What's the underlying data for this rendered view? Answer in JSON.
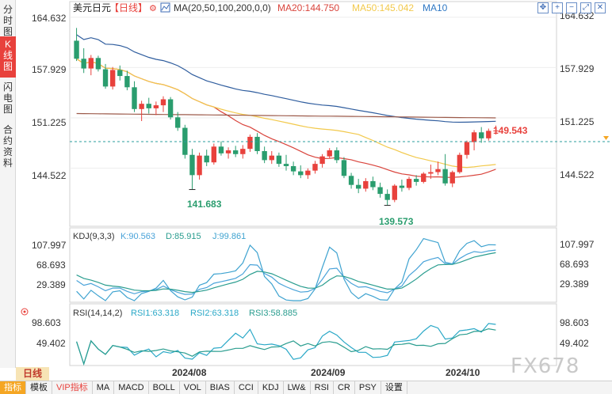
{
  "left_tabs": [
    {
      "label": "分时图",
      "active": false
    },
    {
      "label": "K线图",
      "active": true
    },
    {
      "label": "闪电图",
      "active": false
    },
    {
      "label": "合约资料",
      "active": false
    }
  ],
  "header": {
    "symbol": "美元日元",
    "period_tag": "【日线】",
    "ma_label": "MA(20,50,100,200,0,0)",
    "ma20_label": "MA20:144.750",
    "ma50_label": "MA50:145.042",
    "ma10_label": "MA10"
  },
  "toolbar": {
    "icons": [
      "move-icon",
      "zoom-in-icon",
      "zoom-out-icon",
      "expand-icon",
      "close-icon"
    ],
    "glyphs": [
      "✥",
      "+",
      "−",
      "⤢",
      "✕"
    ]
  },
  "price_axis": {
    "ticks": [
      "164.632",
      "157.929",
      "151.225",
      "144.522"
    ]
  },
  "annotations": {
    "high": "141.683",
    "low": "139.573",
    "current": "149.543"
  },
  "kdj": {
    "title": "KDJ(9,3,3)",
    "k": "K:90.563",
    "d": "D:85.915",
    "j": "J:99.861",
    "ticks": [
      "107.997",
      "68.693",
      "29.389"
    ]
  },
  "rsi": {
    "title": "RSI(14,14,2)",
    "rsi1": "RSI1:63.318",
    "rsi2": "RSI2:63.318",
    "rsi3": "RSI3:58.885",
    "ticks": [
      "98.603",
      "49.402"
    ]
  },
  "x_axis": {
    "labels": [
      "2024/08",
      "2024/09",
      "2024/10"
    ]
  },
  "period_badge": "日线",
  "bottom_tabs": [
    {
      "label": "指标",
      "active": true,
      "highlight": false
    },
    {
      "label": "模板",
      "active": false,
      "highlight": false
    },
    {
      "label": "VIP指标",
      "active": false,
      "highlight": true
    },
    {
      "label": "MA",
      "active": false,
      "highlight": false
    },
    {
      "label": "MACD",
      "active": false,
      "highlight": false
    },
    {
      "label": "BOLL",
      "active": false,
      "highlight": false
    },
    {
      "label": "VOL",
      "active": false,
      "highlight": false
    },
    {
      "label": "BIAS",
      "active": false,
      "highlight": false
    },
    {
      "label": "CCI",
      "active": false,
      "highlight": false
    },
    {
      "label": "KDJ",
      "active": false,
      "highlight": false
    },
    {
      "label": "LW&",
      "active": false,
      "highlight": false
    },
    {
      "label": "RSI",
      "active": false,
      "highlight": false
    },
    {
      "label": "CR",
      "active": false,
      "highlight": false
    },
    {
      "label": "PSY",
      "active": false,
      "highlight": false
    },
    {
      "label": "设置",
      "active": false,
      "highlight": false
    }
  ],
  "watermark": "FX678",
  "colors": {
    "up": "#e8413c",
    "down": "#2a9d6e",
    "ma20": "#d9443c",
    "ma50": "#f2c94c",
    "ma100": "#2f5d9e",
    "ma200": "#9c5a4a",
    "kdj_k": "#4aa3d9",
    "kdj_d": "#2a9d8f",
    "kdj_j": "#3fa3d0",
    "rsi": "#2aa8c7"
  },
  "chart_data": {
    "type": "candlestick",
    "symbol": "美元日元",
    "ylim": [
      137.0,
      166.5
    ],
    "candles": [
      [
        161.5,
        163.2,
        158.8,
        159.1
      ],
      [
        159.1,
        160.5,
        157.2,
        157.8
      ],
      [
        157.8,
        159.6,
        156.9,
        159.2
      ],
      [
        159.2,
        159.5,
        157.4,
        157.7
      ],
      [
        157.7,
        158.4,
        155.1,
        155.4
      ],
      [
        155.4,
        158.0,
        155.0,
        157.6
      ],
      [
        157.6,
        158.2,
        156.2,
        156.8
      ],
      [
        156.8,
        157.5,
        154.9,
        155.3
      ],
      [
        155.3,
        156.1,
        152.0,
        152.4
      ],
      [
        152.4,
        153.5,
        150.8,
        153.1
      ],
      [
        153.1,
        153.9,
        151.8,
        152.5
      ],
      [
        152.5,
        153.4,
        151.6,
        152.9
      ],
      [
        152.9,
        154.1,
        152.0,
        153.7
      ],
      [
        153.7,
        154.0,
        151.0,
        151.3
      ],
      [
        151.3,
        152.0,
        149.5,
        149.9
      ],
      [
        149.9,
        150.3,
        145.8,
        146.3
      ],
      [
        146.3,
        147.1,
        141.7,
        143.6
      ],
      [
        143.6,
        146.6,
        143.0,
        146.2
      ],
      [
        146.2,
        147.0,
        144.8,
        145.3
      ],
      [
        145.3,
        147.8,
        145.0,
        147.4
      ],
      [
        147.4,
        148.1,
        146.2,
        146.5
      ],
      [
        146.5,
        147.3,
        145.8,
        146.9
      ],
      [
        146.9,
        147.5,
        146.0,
        146.4
      ],
      [
        146.4,
        147.6,
        145.8,
        147.1
      ],
      [
        147.1,
        149.0,
        146.7,
        148.7
      ],
      [
        148.7,
        149.2,
        146.4,
        146.8
      ],
      [
        146.8,
        147.4,
        145.2,
        145.6
      ],
      [
        145.6,
        146.8,
        145.1,
        146.2
      ],
      [
        146.2,
        146.6,
        144.7,
        145.1
      ],
      [
        145.1,
        146.3,
        144.2,
        144.8
      ],
      [
        144.8,
        145.4,
        143.6,
        144.1
      ],
      [
        144.1,
        144.9,
        143.2,
        143.6
      ],
      [
        143.6,
        144.5,
        143.1,
        144.2
      ],
      [
        144.2,
        145.5,
        143.8,
        145.1
      ],
      [
        145.1,
        146.4,
        144.6,
        146.1
      ],
      [
        146.1,
        147.2,
        145.8,
        146.9
      ],
      [
        146.9,
        147.3,
        145.2,
        145.6
      ],
      [
        145.6,
        146.0,
        143.2,
        143.5
      ],
      [
        143.5,
        143.9,
        141.8,
        142.3
      ],
      [
        142.3,
        143.1,
        141.2,
        141.8
      ],
      [
        141.8,
        143.2,
        141.4,
        142.8
      ],
      [
        142.8,
        143.4,
        141.6,
        142.0
      ],
      [
        142.0,
        142.6,
        140.6,
        141.1
      ],
      [
        141.1,
        141.7,
        139.6,
        140.3
      ],
      [
        140.3,
        142.4,
        140.0,
        142.2
      ],
      [
        142.2,
        143.0,
        141.4,
        141.9
      ],
      [
        141.9,
        143.4,
        141.6,
        143.1
      ],
      [
        143.1,
        143.6,
        142.2,
        142.7
      ],
      [
        142.7,
        144.0,
        142.5,
        143.8
      ],
      [
        143.8,
        145.0,
        143.1,
        144.0
      ],
      [
        144.0,
        145.4,
        143.6,
        144.4
      ],
      [
        144.4,
        146.4,
        142.2,
        142.5
      ],
      [
        142.5,
        144.2,
        142.0,
        144.0
      ],
      [
        144.0,
        146.6,
        143.8,
        146.3
      ],
      [
        146.3,
        148.2,
        145.8,
        148.0
      ],
      [
        148.0,
        149.6,
        146.9,
        149.3
      ],
      [
        149.3,
        150.0,
        147.9,
        148.5
      ],
      [
        148.5,
        149.8,
        148.2,
        149.5
      ],
      [
        149.5,
        150.2,
        149.0,
        149.54
      ]
    ],
    "annotations": {
      "high_marker": 141.683,
      "low_marker": 139.573,
      "current": 149.543
    }
  }
}
